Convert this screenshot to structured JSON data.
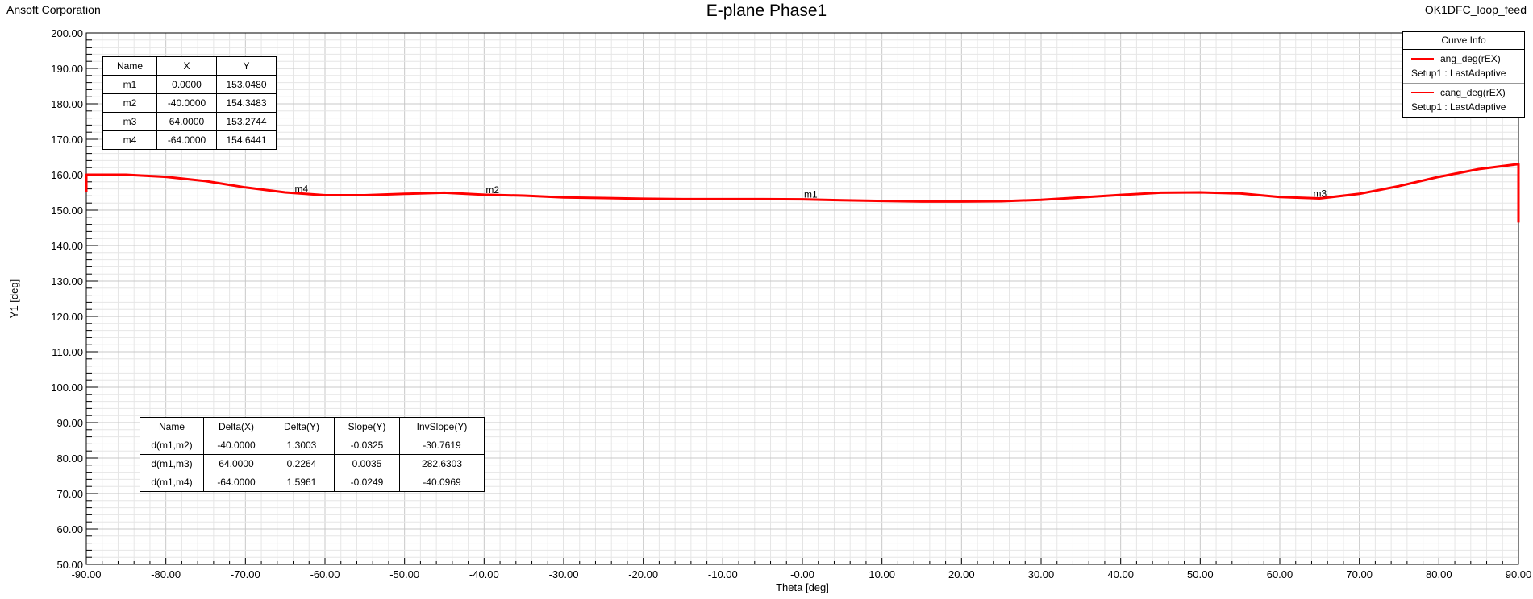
{
  "header": {
    "company": "Ansoft Corporation",
    "title": "E-plane Phase1",
    "project": "OK1DFC_loop_feed"
  },
  "chart_data": {
    "type": "line",
    "title": "E-plane Phase1",
    "xlabel": "Theta [deg]",
    "ylabel": "Y1 [deg]",
    "xlim": [
      -90,
      90
    ],
    "ylim": [
      50,
      200
    ],
    "xticks": [
      "-90.00",
      "-80.00",
      "-70.00",
      "-60.00",
      "-50.00",
      "-40.00",
      "-30.00",
      "-20.00",
      "-10.00",
      "-0.00",
      "10.00",
      "20.00",
      "30.00",
      "40.00",
      "50.00",
      "60.00",
      "70.00",
      "80.00",
      "90.00"
    ],
    "yticks": [
      "50.00",
      "60.00",
      "70.00",
      "80.00",
      "90.00",
      "100.00",
      "110.00",
      "120.00",
      "130.00",
      "140.00",
      "150.00",
      "160.00",
      "170.00",
      "180.00",
      "190.00",
      "200.00"
    ],
    "grid": true,
    "line_color": "#ff0000",
    "series": [
      {
        "name": "ang_deg(rEX)",
        "x": [
          -90,
          -90,
          -85,
          -80,
          -75,
          -70,
          -65,
          -60,
          -55,
          -50,
          -45,
          -40,
          -35,
          -30,
          -25,
          -20,
          -15,
          -10,
          -5,
          0,
          5,
          10,
          15,
          20,
          25,
          30,
          35,
          40,
          45,
          50,
          55,
          60,
          65,
          70,
          75,
          80,
          85,
          90,
          90
        ],
        "y": [
          155.0,
          160.0,
          160.0,
          159.4,
          158.2,
          156.4,
          155.0,
          154.2,
          154.2,
          154.6,
          154.9,
          154.35,
          154.1,
          153.6,
          153.4,
          153.2,
          153.1,
          153.1,
          153.1,
          153.05,
          152.8,
          152.6,
          152.4,
          152.4,
          152.5,
          152.9,
          153.6,
          154.3,
          154.9,
          155.0,
          154.7,
          153.7,
          153.3,
          154.6,
          156.8,
          159.4,
          161.6,
          163.0,
          146.5
        ]
      }
    ],
    "markers": [
      {
        "name": "m1",
        "x": 0,
        "y": 153.048
      },
      {
        "name": "m2",
        "x": -40,
        "y": 154.3483
      },
      {
        "name": "m3",
        "x": 64,
        "y": 153.2744
      },
      {
        "name": "m4",
        "x": -64,
        "y": 154.6441
      }
    ]
  },
  "marker_table": {
    "headers": [
      "Name",
      "X",
      "Y"
    ],
    "rows": [
      [
        "m1",
        "0.0000",
        "153.0480"
      ],
      [
        "m2",
        "-40.0000",
        "154.3483"
      ],
      [
        "m3",
        "64.0000",
        "153.2744"
      ],
      [
        "m4",
        "-64.0000",
        "154.6441"
      ]
    ]
  },
  "delta_table": {
    "headers": [
      "Name",
      "Delta(X)",
      "Delta(Y)",
      "Slope(Y)",
      "InvSlope(Y)"
    ],
    "rows": [
      [
        "d(m1,m2)",
        "-40.0000",
        "1.3003",
        "-0.0325",
        "-30.7619"
      ],
      [
        "d(m1,m3)",
        "64.0000",
        "0.2264",
        "0.0035",
        "282.6303"
      ],
      [
        "d(m1,m4)",
        "-64.0000",
        "1.5961",
        "-0.0249",
        "-40.0969"
      ]
    ]
  },
  "legend": {
    "title": "Curve Info",
    "items": [
      {
        "name": "ang_deg(rEX)",
        "setup": "Setup1 : LastAdaptive",
        "color": "#ff0000"
      },
      {
        "name": "cang_deg(rEX)",
        "setup": "Setup1 : LastAdaptive",
        "color": "#ff0000"
      }
    ]
  }
}
